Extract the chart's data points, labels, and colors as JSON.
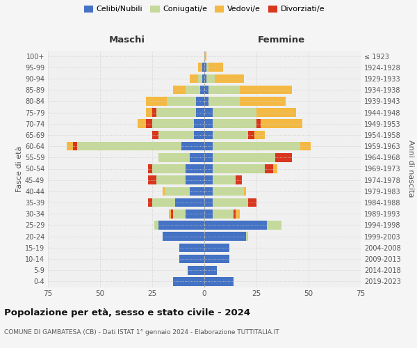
{
  "age_groups": [
    "0-4",
    "5-9",
    "10-14",
    "15-19",
    "20-24",
    "25-29",
    "30-34",
    "35-39",
    "40-44",
    "45-49",
    "50-54",
    "55-59",
    "60-64",
    "65-69",
    "70-74",
    "75-79",
    "80-84",
    "85-89",
    "90-94",
    "95-99",
    "100+"
  ],
  "birth_years": [
    "2019-2023",
    "2014-2018",
    "2009-2013",
    "2004-2008",
    "1999-2003",
    "1994-1998",
    "1989-1993",
    "1984-1988",
    "1979-1983",
    "1974-1978",
    "1969-1973",
    "1964-1968",
    "1959-1963",
    "1954-1958",
    "1949-1953",
    "1944-1948",
    "1939-1943",
    "1934-1938",
    "1929-1933",
    "1924-1928",
    "≤ 1923"
  ],
  "colors": {
    "celibe": "#4472C4",
    "coniugato": "#C5D99B",
    "vedovo": "#F4B942",
    "divorziato": "#D9361E"
  },
  "maschi": {
    "celibe": [
      15,
      8,
      12,
      12,
      20,
      22,
      9,
      14,
      7,
      9,
      9,
      7,
      11,
      5,
      5,
      4,
      4,
      2,
      1,
      1,
      0
    ],
    "coniugato": [
      0,
      0,
      0,
      0,
      0,
      2,
      6,
      11,
      12,
      14,
      16,
      15,
      50,
      17,
      20,
      19,
      14,
      7,
      2,
      0,
      0
    ],
    "vedovo": [
      0,
      0,
      0,
      0,
      0,
      0,
      1,
      0,
      1,
      0,
      0,
      0,
      3,
      0,
      4,
      3,
      10,
      6,
      4,
      2,
      0
    ],
    "divorziato": [
      0,
      0,
      0,
      0,
      0,
      0,
      1,
      2,
      0,
      4,
      2,
      0,
      2,
      3,
      3,
      2,
      0,
      0,
      0,
      0,
      0
    ]
  },
  "femmine": {
    "nubile": [
      14,
      6,
      12,
      12,
      20,
      30,
      4,
      4,
      4,
      4,
      4,
      4,
      4,
      4,
      4,
      4,
      2,
      2,
      1,
      1,
      0
    ],
    "coniugata": [
      0,
      0,
      0,
      0,
      1,
      7,
      10,
      17,
      15,
      11,
      25,
      30,
      42,
      17,
      21,
      21,
      15,
      15,
      4,
      1,
      0
    ],
    "vedova": [
      0,
      0,
      0,
      0,
      0,
      0,
      2,
      0,
      1,
      0,
      2,
      0,
      5,
      5,
      20,
      19,
      22,
      25,
      14,
      7,
      1
    ],
    "divorziata": [
      0,
      0,
      0,
      0,
      0,
      0,
      1,
      4,
      0,
      3,
      4,
      8,
      0,
      3,
      2,
      0,
      0,
      0,
      0,
      0,
      0
    ]
  },
  "title": "Popolazione per età, sesso e stato civile - 2024",
  "subtitle": "COMUNE DI GAMBATESA (CB) - Dati ISTAT 1° gennaio 2024 - Elaborazione TUTTITALIA.IT",
  "xlabel_left": "Maschi",
  "xlabel_right": "Femmine",
  "ylabel_left": "Fasce di età",
  "ylabel_right": "Anni di nascita",
  "xlim": 75,
  "legend_labels": [
    "Celibi/Nubili",
    "Coniugati/e",
    "Vedovi/e",
    "Divorziati/e"
  ],
  "bg_color": "#f5f5f5",
  "plot_bg": "#f0f0f0"
}
